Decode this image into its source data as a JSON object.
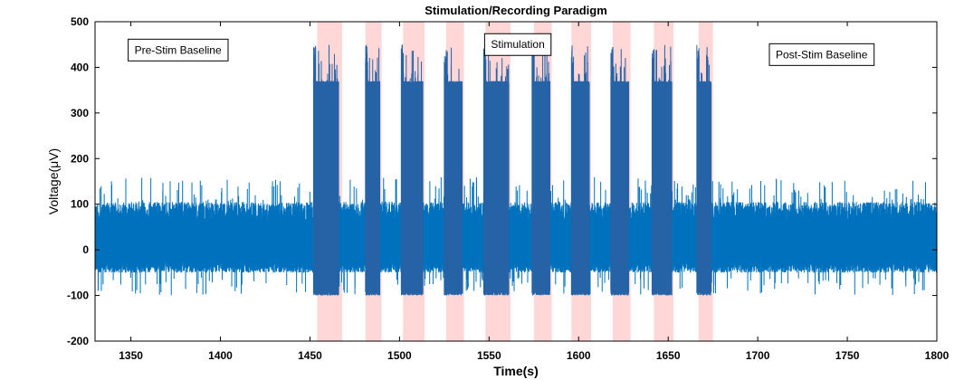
{
  "chart_data": {
    "type": "line",
    "title": "Stimulation/Recording Paradigm",
    "xlabel": "Time(s)",
    "ylabel": "Voltage(μV)",
    "xlim": [
      1330,
      1800
    ],
    "ylim": [
      -200,
      500
    ],
    "xticks": [
      1350,
      1400,
      1450,
      1500,
      1550,
      1600,
      1650,
      1700,
      1750,
      1800
    ],
    "yticks": [
      -200,
      -100,
      0,
      100,
      200,
      300,
      400,
      500
    ],
    "grid": false,
    "colors": {
      "signal": "#0072bd",
      "burst": "#2563a6",
      "stim_shade": "#ffd7d7",
      "axes": "#000000"
    },
    "annotations": [
      {
        "text": "Pre-Stim Baseline",
        "x": 1348,
        "y": 430
      },
      {
        "text": "Stimulation",
        "x": 1547,
        "y": 442
      },
      {
        "text": "Post-Stim Baseline",
        "x": 1706,
        "y": 420
      }
    ],
    "stim_periods": [
      [
        1454,
        1468
      ],
      [
        1481,
        1490
      ],
      [
        1502,
        1514
      ],
      [
        1526,
        1536
      ],
      [
        1548,
        1562
      ],
      [
        1575,
        1585
      ],
      [
        1596,
        1607
      ],
      [
        1619,
        1629
      ],
      [
        1642,
        1653
      ],
      [
        1667,
        1675
      ]
    ],
    "series": [
      {
        "type": "noise-band",
        "x_range": [
          1330,
          1800
        ],
        "typical_range": [
          -60,
          110
        ],
        "peak_range": [
          -100,
          160
        ]
      },
      {
        "type": "bursts",
        "x": [
          [
            1452,
            1466
          ],
          [
            1481,
            1489
          ],
          [
            1501,
            1513
          ],
          [
            1525,
            1535
          ],
          [
            1547,
            1561
          ],
          [
            1574,
            1584
          ],
          [
            1596,
            1606
          ],
          [
            1618,
            1628
          ],
          [
            1641,
            1652
          ],
          [
            1666,
            1674
          ]
        ],
        "low": -100,
        "high": 370,
        "peak": 450
      }
    ]
  }
}
